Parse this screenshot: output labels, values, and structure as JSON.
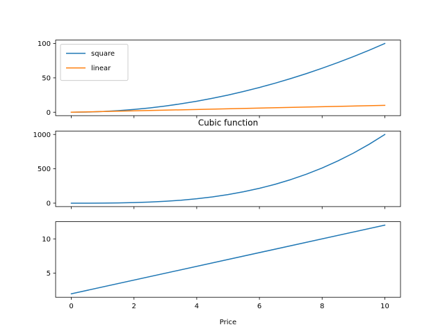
{
  "chart_data": [
    {
      "type": "line",
      "title": "",
      "xlabel": "",
      "ylabel": "",
      "xlim": [
        -0.5,
        10.5
      ],
      "ylim": [
        -5,
        105
      ],
      "xticks": [
        0,
        2,
        4,
        6,
        8,
        10
      ],
      "show_xtick_labels": false,
      "yticks": [
        0,
        50,
        100
      ],
      "ytick_labels": [
        "0",
        "50",
        "100"
      ],
      "grid": false,
      "legend": "top-left",
      "series": [
        {
          "name": "square",
          "color": "#1f77b4",
          "x": [
            0,
            0.5,
            1,
            1.5,
            2,
            2.5,
            3,
            3.5,
            4,
            4.5,
            5,
            5.5,
            6,
            6.5,
            7,
            7.5,
            8,
            8.5,
            9,
            9.5,
            10
          ],
          "y": [
            0,
            0.25,
            1,
            2.25,
            4,
            6.25,
            9,
            12.25,
            16,
            20.25,
            25,
            30.25,
            36,
            42.25,
            49,
            56.25,
            64,
            72.25,
            81,
            90.25,
            100
          ]
        },
        {
          "name": "linear",
          "color": "#ff7f0e",
          "x": [
            0,
            10
          ],
          "y": [
            0,
            10
          ]
        }
      ]
    },
    {
      "type": "line",
      "title": "Cubic function",
      "xlabel": "",
      "ylabel": "",
      "xlim": [
        -0.5,
        10.5
      ],
      "ylim": [
        -50,
        1050
      ],
      "xticks": [
        0,
        2,
        4,
        6,
        8,
        10
      ],
      "show_xtick_labels": false,
      "yticks": [
        0,
        500,
        1000
      ],
      "ytick_labels": [
        "0",
        "500",
        "1000"
      ],
      "grid": false,
      "series": [
        {
          "color": "#1f77b4",
          "x": [
            0,
            0.5,
            1,
            1.5,
            2,
            2.5,
            3,
            3.5,
            4,
            4.5,
            5,
            5.5,
            6,
            6.5,
            7,
            7.5,
            8,
            8.5,
            9,
            9.5,
            10
          ],
          "y": [
            0,
            0.125,
            1,
            3.375,
            8,
            15.625,
            27,
            42.875,
            64,
            91.125,
            125,
            166.375,
            216,
            274.625,
            343,
            421.875,
            512,
            614.125,
            729,
            857.375,
            1000
          ]
        }
      ]
    },
    {
      "type": "line",
      "title": "",
      "xlabel": "Price",
      "ylabel": "",
      "xlim": [
        -0.5,
        10.5
      ],
      "ylim": [
        1.5,
        12.5
      ],
      "xticks": [
        0,
        2,
        4,
        6,
        8,
        10
      ],
      "xtick_labels": [
        "0",
        "2",
        "4",
        "6",
        "8",
        "10"
      ],
      "show_xtick_labels": true,
      "yticks": [
        5,
        10
      ],
      "ytick_labels": [
        "5",
        "10"
      ],
      "grid": false,
      "series": [
        {
          "color": "#1f77b4",
          "x": [
            0,
            10
          ],
          "y": [
            2,
            12
          ]
        }
      ]
    }
  ]
}
